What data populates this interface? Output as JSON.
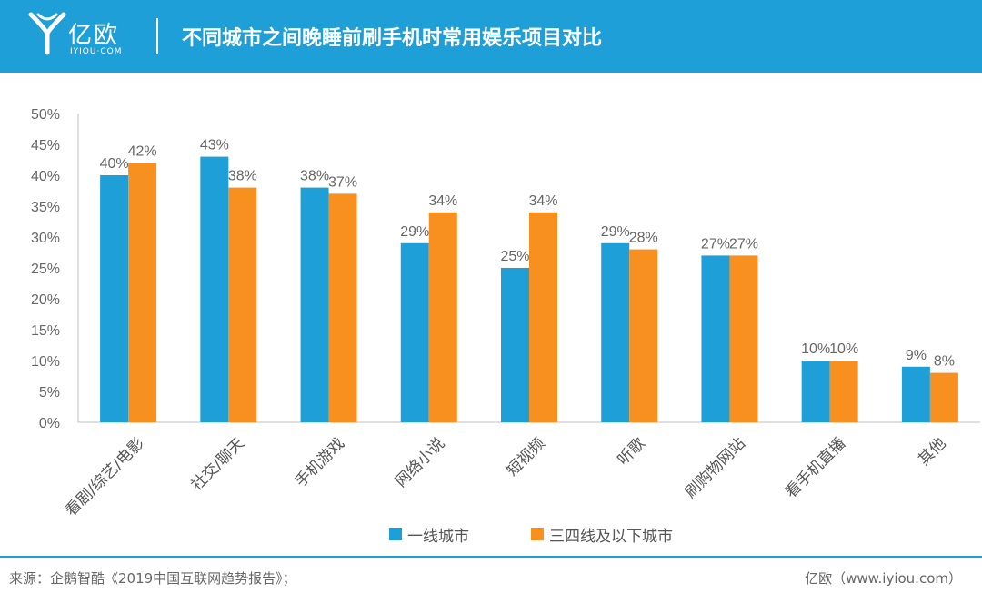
{
  "header": {
    "logo_cn": "亿欧",
    "logo_en": "IYIOU·COM",
    "title": "不同城市之间晚睡前刷手机时常用娱乐项目对比"
  },
  "colors": {
    "header_bg": "#1f9fd8",
    "series_1": "#1f9fd8",
    "series_2": "#f7901e"
  },
  "chart_data": {
    "type": "bar",
    "categories": [
      "看剧/综艺/电影",
      "社交/聊天",
      "手机游戏",
      "网络小说",
      "短视频",
      "听歌",
      "刷购物网站",
      "看手机直播",
      "其他"
    ],
    "series": [
      {
        "name": "一线城市",
        "values": [
          40,
          43,
          38,
          29,
          25,
          29,
          27,
          10,
          9
        ]
      },
      {
        "name": "三四线及以下城市",
        "values": [
          42,
          38,
          37,
          34,
          34,
          28,
          27,
          10,
          8
        ]
      }
    ],
    "value_labels": [
      [
        "40%",
        "43%",
        "38%",
        "29%",
        "25%",
        "29%",
        "27%",
        "10%",
        "9%"
      ],
      [
        "42%",
        "38%",
        "37%",
        "34%",
        "34%",
        "28%",
        "27%",
        "10%",
        "8%"
      ]
    ],
    "y_ticks": [
      "0%",
      "5%",
      "10%",
      "15%",
      "20%",
      "25%",
      "30%",
      "35%",
      "40%",
      "45%",
      "50%"
    ],
    "ylim": [
      0,
      50
    ],
    "grid": false,
    "legend_position": "bottom"
  },
  "footer": {
    "source": "来源：企鹅智酷《2019中国互联网趋势报告》；",
    "credit": "亿欧（www.iyiou.com）"
  }
}
